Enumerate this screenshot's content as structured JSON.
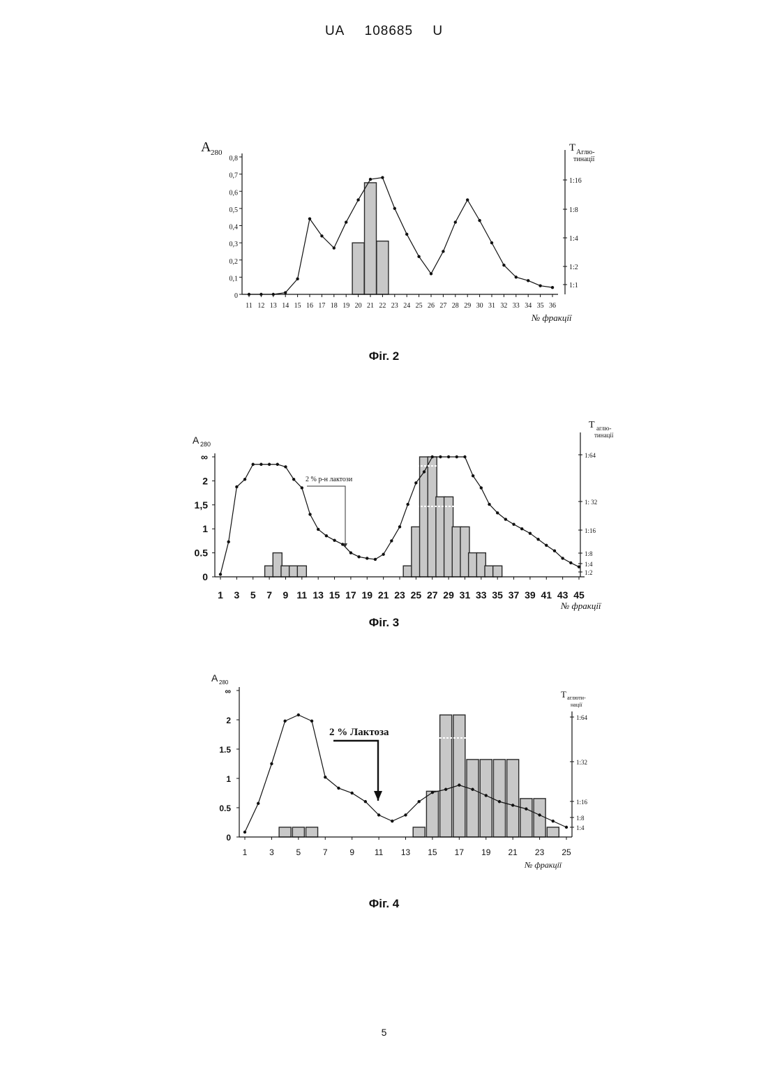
{
  "header": {
    "office": "UA",
    "number": "108685",
    "kind": "U"
  },
  "page_number": "5",
  "colors": {
    "bar_fill": "#c8c8c8",
    "bar_stroke": "#2a2a2a",
    "line": "#111111"
  },
  "figures": [
    {
      "caption": "Фіг. 2",
      "y_left_title": "A",
      "y_left_sub": "280",
      "y_right_title": "T",
      "y_right_title_sub": "Аглю-",
      "y_right_title_sub2": "тинації",
      "x_title": "№ фракції",
      "annotation": ""
    },
    {
      "caption": "Фіг. 3",
      "y_left_title": "A",
      "y_left_sub": "280",
      "y_right_title": "T",
      "y_right_title_sub": "аглю-",
      "y_right_title_sub2": "тинації",
      "x_title": "№ фракції",
      "annotation": "2 % р-н лактози"
    },
    {
      "caption": "Фіг. 4",
      "y_left_title": "A",
      "y_left_sub": "280",
      "y_right_title": "T",
      "y_right_title_sub": "аглюти-",
      "y_right_title_sub2": "нації",
      "x_title": "№ фракції",
      "annotation": "2 % Лактоза"
    }
  ],
  "chart_data": [
    {
      "type": "bar+line",
      "x": [
        11,
        12,
        13,
        14,
        15,
        16,
        17,
        18,
        19,
        20,
        21,
        22,
        23,
        24,
        25,
        26,
        27,
        28,
        29,
        30,
        31,
        32,
        33,
        34,
        35,
        36
      ],
      "x_tick_labels": [
        "11",
        "12",
        "13",
        "14",
        "15",
        "16",
        "17",
        "18",
        "19",
        "20",
        "21",
        "22",
        "23",
        "24",
        "25",
        "26",
        "27",
        "28",
        "29",
        "30",
        "31",
        "32",
        "33",
        "34",
        "35",
        "36"
      ],
      "ylim": [
        0,
        0.8
      ],
      "y_tick_labels": [
        "0",
        "0,1",
        "0,2",
        "0,3",
        "0,4",
        "0,5",
        "0,6",
        "0,7",
        "0,8"
      ],
      "right_tick_labels": [
        "1:1",
        "1:2",
        "1:4",
        "1:8",
        "1:16"
      ],
      "series": [
        {
          "values": [
            0.0,
            0.0,
            0.0,
            0.01,
            0.09,
            0.44,
            0.34,
            0.27,
            0.42,
            0.55,
            0.67,
            0.68,
            0.5,
            0.35,
            0.22,
            0.12,
            0.25,
            0.42,
            0.55,
            0.43,
            0.3,
            0.17,
            0.1,
            0.08,
            0.05,
            0.04
          ]
        }
      ],
      "bars": [
        {
          "x": 20,
          "value": 0.3
        },
        {
          "x": 21,
          "value": 0.65
        },
        {
          "x": 22,
          "value": 0.31
        }
      ]
    },
    {
      "type": "bar+line",
      "x": [
        1,
        2,
        3,
        4,
        5,
        6,
        7,
        8,
        9,
        10,
        11,
        12,
        13,
        14,
        15,
        16,
        17,
        18,
        19,
        20,
        21,
        22,
        23,
        24,
        25,
        26,
        27,
        28,
        29,
        30,
        31,
        32,
        33,
        34,
        35,
        36,
        37,
        38,
        39,
        40,
        41,
        42,
        43,
        44,
        45
      ],
      "x_tick_labels": [
        "1",
        "3",
        "5",
        "7",
        "9",
        "11",
        "13",
        "15",
        "17",
        "19",
        "21",
        "23",
        "25",
        "27",
        "29",
        "31",
        "33",
        "35",
        "37",
        "39",
        "41",
        "43",
        "45"
      ],
      "ylim": [
        0,
        2.4
      ],
      "y_tick_labels": [
        "0",
        "0.5",
        "1",
        "1,5",
        "2",
        "∞"
      ],
      "right_tick_labels": [
        "1:2",
        "1:4",
        "1:8",
        "1:16",
        "1: 32",
        "1:64"
      ],
      "series": [
        {
          "values": [
            0.05,
            0.7,
            1.8,
            1.95,
            2.25,
            2.25,
            2.25,
            2.25,
            2.2,
            1.95,
            1.78,
            1.25,
            0.95,
            0.82,
            0.73,
            0.65,
            0.48,
            0.4,
            0.37,
            0.35,
            0.45,
            0.72,
            1.0,
            1.45,
            1.88,
            2.1,
            2.4,
            2.4,
            2.4,
            2.4,
            2.4,
            2.02,
            1.78,
            1.45,
            1.28,
            1.15,
            1.05,
            0.96,
            0.87,
            0.75,
            0.63,
            0.52,
            0.37,
            0.28,
            0.2
          ]
        }
      ],
      "bars": [
        {
          "x": 7,
          "value": 0.22
        },
        {
          "x": 8,
          "value": 0.48
        },
        {
          "x": 9,
          "value": 0.22
        },
        {
          "x": 10,
          "value": 0.22
        },
        {
          "x": 11,
          "value": 0.22
        },
        {
          "x": 24,
          "value": 0.22
        },
        {
          "x": 25,
          "value": 1.0
        },
        {
          "x": 26,
          "value": 2.4
        },
        {
          "x": 27,
          "value": 2.4
        },
        {
          "x": 28,
          "value": 1.6
        },
        {
          "x": 29,
          "value": 1.6
        },
        {
          "x": 30,
          "value": 1.0
        },
        {
          "x": 31,
          "value": 1.0
        },
        {
          "x": 32,
          "value": 0.48
        },
        {
          "x": 33,
          "value": 0.48
        },
        {
          "x": 34,
          "value": 0.22
        },
        {
          "x": 35,
          "value": 0.22
        }
      ]
    },
    {
      "type": "bar+line",
      "x": [
        1,
        2,
        3,
        4,
        5,
        6,
        7,
        8,
        9,
        10,
        11,
        12,
        13,
        14,
        15,
        16,
        17,
        18,
        19,
        20,
        21,
        22,
        23,
        24,
        25
      ],
      "x_tick_labels": [
        "1",
        "3",
        "5",
        "7",
        "9",
        "11",
        "13",
        "15",
        "17",
        "19",
        "21",
        "23",
        "25"
      ],
      "ylim": [
        0,
        2.4
      ],
      "y_tick_labels": [
        "0",
        "0.5",
        "1",
        "1.5",
        "2",
        "∞"
      ],
      "right_tick_labels": [
        "1:4",
        "1:8",
        "1:16",
        "1:32",
        "1:64"
      ],
      "series": [
        {
          "values": [
            0.08,
            0.55,
            1.2,
            1.9,
            2.0,
            1.9,
            0.98,
            0.8,
            0.72,
            0.58,
            0.36,
            0.26,
            0.36,
            0.58,
            0.73,
            0.78,
            0.85,
            0.78,
            0.68,
            0.58,
            0.52,
            0.46,
            0.36,
            0.26,
            0.16
          ]
        }
      ],
      "bars": [
        {
          "x": 4,
          "value": 0.16
        },
        {
          "x": 5,
          "value": 0.16
        },
        {
          "x": 6,
          "value": 0.16
        },
        {
          "x": 14,
          "value": 0.16
        },
        {
          "x": 15,
          "value": 0.75
        },
        {
          "x": 16,
          "value": 2.0
        },
        {
          "x": 17,
          "value": 2.0
        },
        {
          "x": 18,
          "value": 1.27
        },
        {
          "x": 19,
          "value": 1.27
        },
        {
          "x": 20,
          "value": 1.27
        },
        {
          "x": 21,
          "value": 1.27
        },
        {
          "x": 22,
          "value": 0.63
        },
        {
          "x": 23,
          "value": 0.63
        },
        {
          "x": 24,
          "value": 0.16
        }
      ]
    }
  ]
}
